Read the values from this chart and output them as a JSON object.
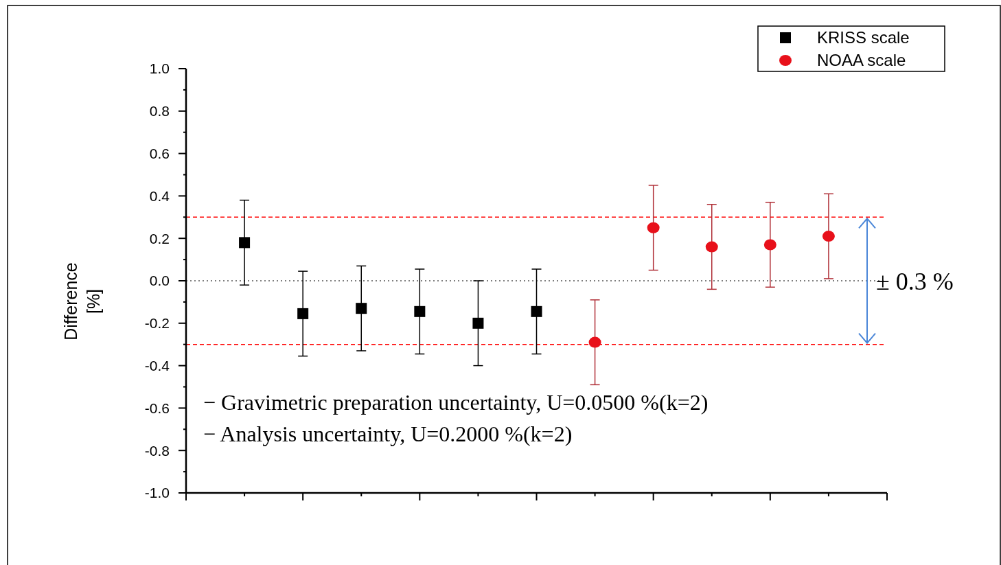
{
  "chart_data": {
    "type": "scatter",
    "ylabel": "Difference\n[%]",
    "categories": [
      null,
      null,
      null,
      null,
      null,
      null,
      null,
      null,
      null,
      null,
      null
    ],
    "series": [
      {
        "name": "KRISS scale",
        "color": "#000000",
        "marker": "square",
        "values": [
          0.18,
          -0.155,
          -0.13,
          -0.145,
          -0.2,
          -0.145,
          null,
          null,
          null,
          null,
          null
        ],
        "errors": [
          0.2,
          0.2,
          0.2,
          0.2,
          0.2,
          0.2,
          null,
          null,
          null,
          null,
          null
        ]
      },
      {
        "name": "NOAA scale",
        "color": "#e8101a",
        "marker": "circle",
        "values": [
          null,
          null,
          null,
          null,
          null,
          null,
          -0.29,
          0.25,
          0.16,
          0.17,
          0.21
        ],
        "errors": [
          null,
          null,
          null,
          null,
          null,
          null,
          0.2,
          0.2,
          0.2,
          0.2,
          0.2
        ]
      }
    ],
    "ylim": [
      -1,
      1
    ],
    "yticks": [
      {
        "value": -1,
        "label": "-1.0"
      },
      {
        "value": -0.9,
        "label": null
      },
      {
        "value": -0.8,
        "label": "-0.8"
      },
      {
        "value": -0.7,
        "label": null
      },
      {
        "value": -0.6,
        "label": "-0.6"
      },
      {
        "value": -0.5,
        "label": null
      },
      {
        "value": -0.4,
        "label": "-0.4"
      },
      {
        "value": -0.3,
        "label": null
      },
      {
        "value": -0.2,
        "label": "-0.2"
      },
      {
        "value": -0.1,
        "label": null
      },
      {
        "value": 0,
        "label": "0.0"
      },
      {
        "value": 0.1,
        "label": null
      },
      {
        "value": 0.2,
        "label": "0.2"
      },
      {
        "value": 0.3,
        "label": null
      },
      {
        "value": 0.4,
        "label": "0.4"
      },
      {
        "value": 0.5,
        "label": null
      },
      {
        "value": 0.6,
        "label": "0.6"
      },
      {
        "value": 0.7,
        "label": null
      },
      {
        "value": 0.8,
        "label": "0.8"
      },
      {
        "value": 0.9,
        "label": null
      },
      {
        "value": 1,
        "label": "1.0"
      }
    ],
    "ref_lines": [
      {
        "axis": "y",
        "value": 0.3,
        "color": "#ff0000",
        "line_style": "dashed"
      },
      {
        "axis": "y",
        "value": -0.3,
        "color": "#ff0000",
        "line_style": "dashed"
      },
      {
        "axis": "y",
        "value": 0,
        "color": "#555555",
        "line_style": "dotted"
      }
    ],
    "annotations": [
      "± 0.3 %",
      "− Gravimetric preparation uncertainty, U=0.0500 %(k=2)",
      "− Analysis uncertainty, U=0.2000 %(k=2)"
    ],
    "legend": "top right",
    "grid": false
  }
}
